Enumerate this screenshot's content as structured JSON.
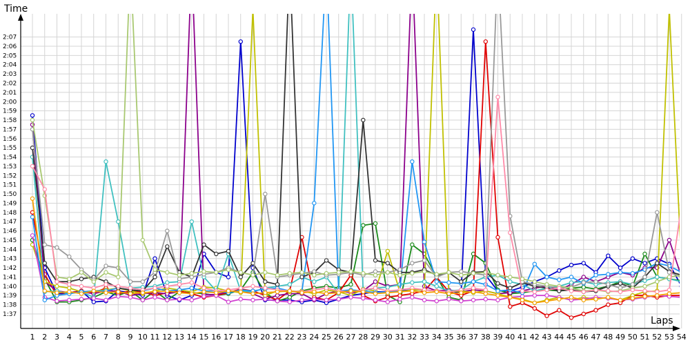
{
  "chart_data": {
    "type": "line",
    "xlabel": "Laps",
    "ylabel": "Time",
    "xlim": [
      1,
      54
    ],
    "ylim": [
      96,
      128
    ],
    "grid": true,
    "x_ticks": [
      "1",
      "2",
      "3",
      "4",
      "5",
      "6",
      "7",
      "8",
      "9",
      "10",
      "11",
      "12",
      "13",
      "14",
      "15",
      "16",
      "17",
      "18",
      "19",
      "20",
      "21",
      "22",
      "23",
      "24",
      "25",
      "26",
      "27",
      "28",
      "29",
      "30",
      "31",
      "32",
      "33",
      "34",
      "35",
      "36",
      "37",
      "38",
      "39",
      "40",
      "41",
      "42",
      "43",
      "44",
      "45",
      "46",
      "47",
      "48",
      "49",
      "50",
      "51",
      "52",
      "53",
      "54"
    ],
    "y_ticks": [
      {
        "v": 97,
        "label": "1:37"
      },
      {
        "v": 98,
        "label": "1:38"
      },
      {
        "v": 99,
        "label": "1:39"
      },
      {
        "v": 100,
        "label": "1:40"
      },
      {
        "v": 101,
        "label": "1:41"
      },
      {
        "v": 102,
        "label": "1:42"
      },
      {
        "v": 103,
        "label": "1:43"
      },
      {
        "v": 104,
        "label": "1:44"
      },
      {
        "v": 105,
        "label": "1:45"
      },
      {
        "v": 106,
        "label": "1:46"
      },
      {
        "v": 107,
        "label": "1:47"
      },
      {
        "v": 108,
        "label": "1:48"
      },
      {
        "v": 109,
        "label": "1:49"
      },
      {
        "v": 110,
        "label": "1:50"
      },
      {
        "v": 111,
        "label": "1:51"
      },
      {
        "v": 112,
        "label": "1:52"
      },
      {
        "v": 113,
        "label": "1:53"
      },
      {
        "v": 114,
        "label": "1:54"
      },
      {
        "v": 115,
        "label": "1:55"
      },
      {
        "v": 116,
        "label": "1:56"
      },
      {
        "v": 117,
        "label": "1:57"
      },
      {
        "v": 118,
        "label": "1:58"
      },
      {
        "v": 119,
        "label": "1:59"
      },
      {
        "v": 120,
        "label": "2:00"
      },
      {
        "v": 121,
        "label": "2:01"
      },
      {
        "v": 122,
        "label": "2:02"
      },
      {
        "v": 123,
        "label": "2:03"
      },
      {
        "v": 124,
        "label": "2:04"
      },
      {
        "v": 125,
        "label": "2:05"
      },
      {
        "v": 126,
        "label": "2:06"
      },
      {
        "v": 127,
        "label": "2:07"
      }
    ],
    "series": [
      {
        "color": "#0000cc",
        "values": [
          118.5,
          102,
          99.2,
          99.3,
          99.5,
          98.3,
          98.4,
          99.5,
          99.3,
          99,
          103,
          99,
          98.5,
          99,
          103.5,
          101.5,
          101,
          126.5,
          102,
          98.5,
          98.5,
          98.5,
          98.3,
          98.5,
          98.2,
          98.6,
          99,
          99.2,
          99.4,
          99.4,
          99.5,
          99.6,
          99.6,
          99.5,
          99.5,
          99.3,
          127.8,
          101.2,
          99.5,
          99.5,
          99.9,
          100.5,
          101,
          101.7,
          102.3,
          102.5,
          101.5,
          103.3,
          102,
          103,
          102.5,
          103,
          102.4,
          100
        ]
      },
      {
        "color": "#1a8a1a",
        "values": [
          105,
          100.8,
          98.3,
          98.3,
          98.5,
          98.8,
          99.4,
          99,
          99.5,
          98.5,
          99.5,
          98.5,
          99.4,
          99.3,
          99.2,
          99,
          99.2,
          99.6,
          101.5,
          99.3,
          98.4,
          98.8,
          99.5,
          99.8,
          100,
          99.8,
          100.2,
          106.6,
          106.8,
          99,
          98.3,
          104.5,
          103.5,
          101,
          98.8,
          98.5,
          103.5,
          102.5,
          99.6,
          99.2,
          99.3,
          99.5,
          99.6,
          99.5,
          99.8,
          99.9,
          99.7,
          100,
          100.5,
          100,
          103.5,
          101,
          100.8,
          100.6
        ]
      },
      {
        "color": "#e00000",
        "values": [
          108,
          101.3,
          99,
          99.3,
          99.5,
          99.3,
          99.8,
          99.2,
          99.5,
          99.4,
          99,
          99.3,
          99.5,
          99.2,
          98.8,
          99,
          99.3,
          99.7,
          99.5,
          99,
          98.5,
          99.5,
          105.3,
          98.8,
          98.5,
          99.3,
          101.2,
          99,
          98.4,
          98.8,
          99,
          99.2,
          99.5,
          101,
          99.4,
          99,
          99.5,
          126.5,
          105.3,
          97.8,
          98.2,
          97.6,
          96.8,
          97.4,
          96.6,
          97,
          97.4,
          98,
          98.2,
          99,
          99,
          98.8,
          99,
          99
        ]
      },
      {
        "color": "#8b008b",
        "values": [
          117.5,
          100.5,
          99.5,
          99.3,
          99.4,
          99.2,
          99.5,
          99.5,
          99,
          99.2,
          99.3,
          99.2,
          99.4,
          135,
          99.1,
          99.1,
          99.4,
          99.5,
          99.2,
          98.6,
          99,
          99.2,
          99.2,
          98.5,
          99.2,
          99.5,
          99.3,
          99.5,
          100.5,
          100,
          100.2,
          135,
          100,
          99.5,
          99.6,
          99.4,
          99.6,
          99.5,
          99.2,
          99.3,
          99.5,
          99.8,
          100,
          99.6,
          100.2,
          101,
          100.5,
          101,
          101.5,
          101.2,
          102,
          102,
          105,
          101
        ]
      },
      {
        "color": "#c0c000",
        "values": [
          104.5,
          100.5,
          100,
          99.8,
          99.4,
          99.5,
          99.6,
          99.8,
          99.5,
          99.2,
          99.5,
          99.8,
          99.6,
          99.4,
          99.9,
          99.8,
          99.5,
          99.3,
          130,
          99,
          99.5,
          99.4,
          99.5,
          99.2,
          99.6,
          99.4,
          99,
          99.7,
          99.5,
          103.8,
          99.4,
          99.6,
          99.6,
          135,
          99.4,
          99.5,
          99.3,
          99.5,
          99.2,
          98.8,
          98.6,
          98.2,
          98.5,
          98.8,
          98.5,
          98.8,
          98.6,
          98.8,
          98.5,
          99,
          99.4,
          99.5,
          130,
          102
        ]
      },
      {
        "color": "#40c0c0",
        "values": [
          114,
          99.4,
          99.5,
          99.2,
          99.4,
          98.8,
          113.5,
          107,
          99.8,
          99.9,
          100,
          100.4,
          100.5,
          107,
          101,
          99.5,
          103.5,
          99.5,
          99.4,
          99.8,
          100,
          100.2,
          101,
          100.5,
          101,
          99.2,
          135,
          99.5,
          99.8,
          99.9,
          100.2,
          100.4,
          100.5,
          100,
          99.5,
          99.6,
          100.5,
          101,
          101.2,
          100.5,
          100.2,
          99.5,
          99.8,
          100,
          100.4,
          100.5,
          100.2,
          100.4,
          100.5,
          100.2,
          100.6,
          101,
          100.8,
          100.5
        ]
      },
      {
        "color": "#d040d0",
        "values": [
          105.5,
          98.8,
          98.4,
          98.5,
          98.6,
          98.7,
          98.5,
          98.9,
          98.8,
          98.5,
          98.8,
          98.5,
          98.6,
          98.5,
          98.9,
          99,
          98.3,
          98.6,
          98.5,
          98.6,
          98.4,
          98.3,
          98.5,
          98.6,
          98.5,
          98.6,
          98.8,
          98.7,
          98.5,
          98.3,
          98.6,
          98.8,
          98.5,
          98.4,
          98.6,
          98.4,
          98.5,
          98.6,
          98.5,
          98.8,
          98.9,
          99,
          99,
          98.8,
          98.5,
          98.6,
          98.8,
          98.7,
          98.5,
          98.6,
          98.8,
          99,
          98.9,
          98.8
        ]
      },
      {
        "color": "#2196f3",
        "values": [
          107.5,
          98.5,
          99,
          99.2,
          99.4,
          99.5,
          99.5,
          99.8,
          99.6,
          99.5,
          99.8,
          99.5,
          99.6,
          99.8,
          99.5,
          99.5,
          99.3,
          99.6,
          99.5,
          99.7,
          99.8,
          99.5,
          99.4,
          109,
          135,
          99.5,
          99.6,
          99.5,
          99.3,
          99.4,
          99.5,
          113.5,
          104.8,
          100.5,
          100.4,
          100.3,
          100.5,
          100.2,
          99.5,
          99.6,
          99.3,
          102.4,
          101,
          100.7,
          101,
          100.3,
          101.2,
          101.3,
          101.5,
          101.4,
          101.8,
          102.5,
          102.2,
          101.5
        ]
      },
      {
        "color": "#333333",
        "values": [
          115,
          102.5,
          100.5,
          100.5,
          100.8,
          101,
          100.5,
          99.8,
          99.6,
          99.5,
          101,
          104.3,
          101.5,
          101,
          104.5,
          103.5,
          103.8,
          101,
          102.5,
          100.5,
          100.2,
          135,
          101,
          101.5,
          102.8,
          101.8,
          101.5,
          118,
          102.8,
          102.5,
          101.5,
          101.5,
          101.8,
          101.2,
          101.5,
          100.5,
          101.5,
          101.6,
          100.3,
          99.8,
          100.4,
          100,
          99.8,
          99.5,
          99.6,
          99.4,
          99.5,
          100,
          100.3,
          99.8,
          101,
          102.5,
          101.6,
          101.2
        ]
      },
      {
        "color": "#999999",
        "values": [
          117,
          104.5,
          104.2,
          103.2,
          101.8,
          100.7,
          102.2,
          102,
          100.5,
          100.5,
          101.5,
          106,
          100.8,
          101,
          101.3,
          101.5,
          102,
          101.5,
          101.2,
          110,
          101,
          101.2,
          101.4,
          101.6,
          101.2,
          101.3,
          101.5,
          101.2,
          101.6,
          101.5,
          101.8,
          102.5,
          102.8,
          101,
          101.5,
          101.6,
          101.4,
          101.2,
          135,
          107.6,
          100.5,
          100.2,
          100,
          99.8,
          99.9,
          100.4,
          100.5,
          100.2,
          99.8,
          100.2,
          101,
          108,
          101.5,
          101
        ]
      },
      {
        "color": "#a8c870",
        "values": [
          118,
          109.8,
          101,
          100.8,
          101.5,
          100.5,
          101.5,
          101,
          135,
          105,
          101.8,
          101.5,
          101.2,
          101.4,
          101.6,
          101.5,
          101.8,
          101.5,
          101.2,
          101.5,
          101.2,
          101.4,
          101.5,
          101.2,
          101.4,
          101.5,
          101.6,
          101.4,
          101.2,
          101.5,
          101.2,
          101.4,
          101.6,
          101.3,
          101.5,
          101.2,
          101.4,
          101.5,
          101.2,
          101,
          100.8,
          100.5,
          100.2,
          100,
          99.8,
          99.5,
          99.6,
          99.4,
          99.5,
          99.8,
          100,
          100.5,
          101,
          101.2
        ]
      },
      {
        "color": "#ff8aa8",
        "values": [
          113,
          110.5,
          100.5,
          100.2,
          100,
          99.8,
          100.2,
          100,
          99.8,
          99.6,
          99.8,
          100,
          100.2,
          100.4,
          99.8,
          99.5,
          99.6,
          99.8,
          100,
          99.8,
          99.6,
          99.5,
          99.4,
          99.6,
          99.8,
          99.5,
          99.4,
          99.6,
          99.8,
          99.5,
          99.6,
          99.8,
          99.6,
          99.5,
          99.4,
          99.6,
          99.8,
          99.6,
          120.5,
          105.8,
          99.5,
          99.4,
          99.6,
          99.8,
          99.5,
          99.4,
          99.6,
          99.5,
          99.4,
          99.6,
          99.5,
          99.4,
          99.6,
          108.8
        ]
      },
      {
        "color": "#f5a000",
        "values": [
          109.5,
          99.5,
          99.3,
          99.4,
          99.2,
          99.5,
          99.3,
          99.4,
          99.2,
          99.3,
          99.4,
          99.5,
          99.3,
          99.2,
          99.4,
          99.3,
          99.5,
          99.4,
          99.2,
          99.3,
          99.4,
          99.5,
          99.3,
          99.4,
          99.2,
          99.3,
          99.5,
          99.4,
          99.2,
          99.3,
          99.4,
          99.5,
          99.3,
          99.4,
          99.2,
          99.3,
          99.4,
          99.2,
          99,
          98.8,
          98.5,
          98.2,
          98.4,
          98.6,
          98.8,
          98.5,
          98.6,
          98.8,
          98.5,
          98.7,
          98.9,
          99,
          99.2,
          99.3
        ]
      }
    ]
  }
}
